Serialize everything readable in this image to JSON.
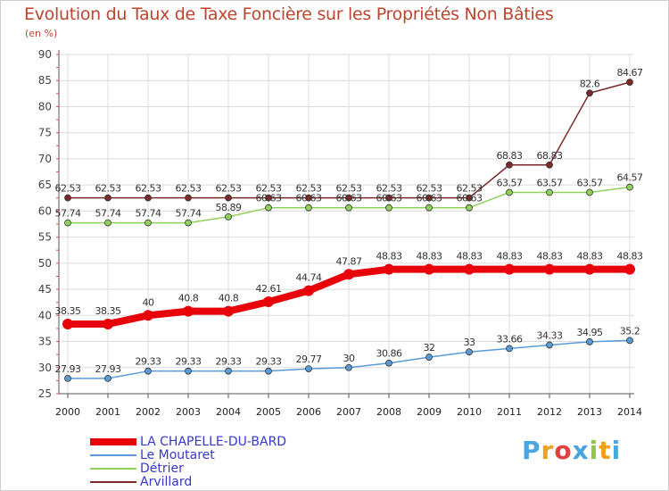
{
  "chart_data": {
    "type": "line",
    "title": "Evolution du Taux de Taxe Foncière sur les Propriétés Non Bâties",
    "ylabel": "(en %)",
    "xlabel": "",
    "ylim": [
      25,
      90
    ],
    "yticks": [
      25,
      30,
      35,
      40,
      45,
      50,
      55,
      60,
      65,
      70,
      75,
      80,
      85,
      90
    ],
    "categories": [
      "2000",
      "2001",
      "2002",
      "2003",
      "2004",
      "2005",
      "2006",
      "2007",
      "2008",
      "2009",
      "2010",
      "2011",
      "2012",
      "2013",
      "2014"
    ],
    "grid": true,
    "series": [
      {
        "name": "LA CHAPELLE-DU-BARD",
        "color": "#e8000a",
        "values": [
          38.35,
          38.35,
          40,
          40.8,
          40.8,
          42.61,
          44.74,
          47.87,
          48.83,
          48.83,
          48.83,
          48.83,
          48.83,
          48.83,
          48.83
        ],
        "labels": [
          "38.35",
          "38.35",
          "40",
          "40.8",
          "40.8",
          "42.61",
          "44.74",
          "47.87",
          "48.83",
          "48.83",
          "48.83",
          "48.83",
          "48.83",
          "48.83",
          "48.83"
        ]
      },
      {
        "name": "Le Moutaret",
        "color": "#5b9bd5",
        "values": [
          27.93,
          27.93,
          29.33,
          29.33,
          29.33,
          29.33,
          29.77,
          30,
          30.86,
          32,
          33,
          33.66,
          34.33,
          34.95,
          35.2
        ],
        "labels": [
          "27.93",
          "27.93",
          "29.33",
          "29.33",
          "29.33",
          "29.33",
          "29.77",
          "30",
          "30.86",
          "32",
          "33",
          "33.66",
          "34.33",
          "34.95",
          "35.2"
        ]
      },
      {
        "name": "Détrier",
        "color": "#8fd15a",
        "values": [
          57.74,
          57.74,
          57.74,
          57.74,
          58.89,
          60.63,
          60.63,
          60.63,
          60.63,
          60.63,
          60.63,
          63.57,
          63.57,
          63.57,
          64.57
        ],
        "labels": [
          "57.74",
          "57.74",
          "57.74",
          "57.74",
          "58.89",
          "60.63",
          "60.63",
          "60.63",
          "60.63",
          "60.63",
          "60.63",
          "63.57",
          "63.57",
          "63.57",
          "64.57"
        ]
      },
      {
        "name": "Arvillard",
        "color": "#7b2a2a",
        "values": [
          62.53,
          62.53,
          62.53,
          62.53,
          62.53,
          62.53,
          62.53,
          62.53,
          62.53,
          62.53,
          62.53,
          68.83,
          68.83,
          82.6,
          84.67
        ],
        "labels": [
          "62.53",
          "62.53",
          "62.53",
          "62.53",
          "62.53",
          "62.53",
          "62.53",
          "62.53",
          "62.53",
          "62.53",
          "62.53",
          "68.83",
          "68.83",
          "82.6",
          "84.67"
        ]
      }
    ]
  },
  "logo": {
    "text": "Proxiti",
    "letters": [
      "P",
      "r",
      "o",
      "x",
      "i",
      "t",
      "i"
    ],
    "colors": [
      "#4aa6e0",
      "#f0a020",
      "#e04040",
      "#4aa6e0",
      "#90c840",
      "#f0a020",
      "#4aa6e0"
    ]
  }
}
